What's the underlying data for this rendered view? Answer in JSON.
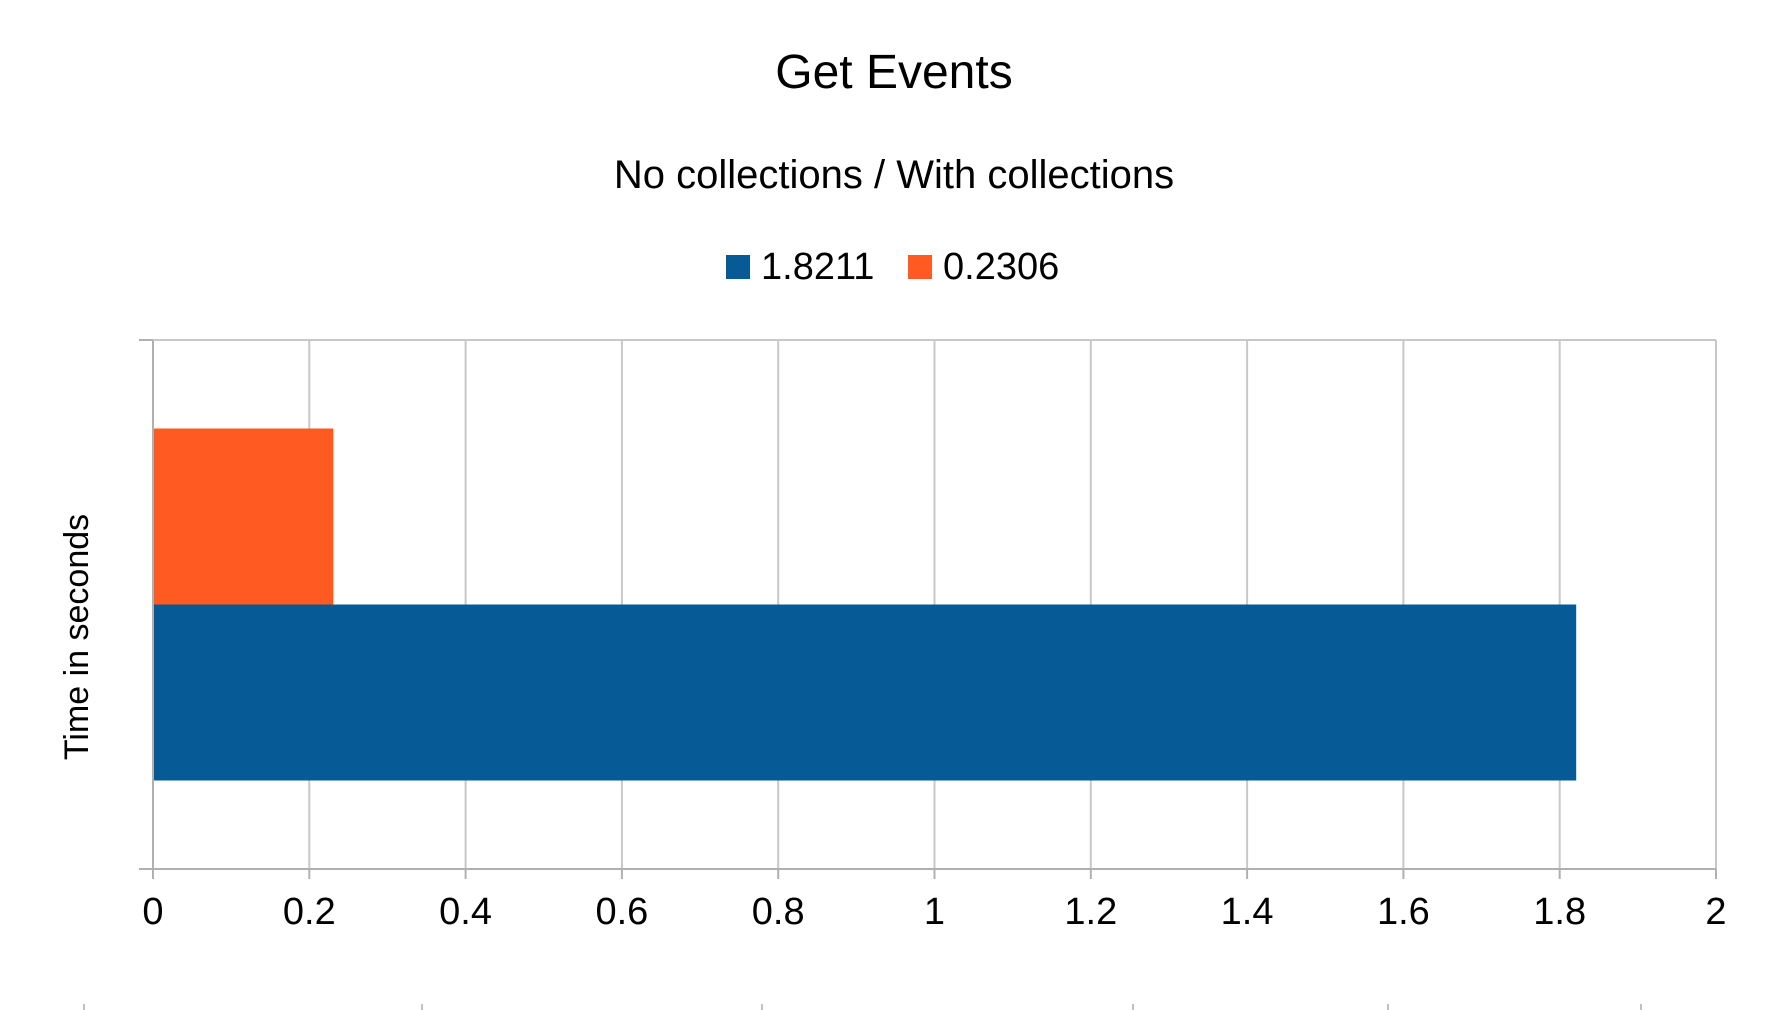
{
  "chart_data": {
    "type": "bar",
    "orientation": "horizontal",
    "title": "Get Events",
    "subtitle": "No collections / With collections",
    "xlabel": "",
    "ylabel": "Time in seconds",
    "xlim": [
      0,
      2
    ],
    "x_ticks": [
      "0",
      "0.2",
      "0.4",
      "0.6",
      "0.8",
      "1",
      "1.2",
      "1.4",
      "1.6",
      "1.8",
      "2"
    ],
    "grid": true,
    "legend_position": "top",
    "series": [
      {
        "name": "1.8211",
        "value": 1.8211,
        "color": "#065b96"
      },
      {
        "name": "0.2306",
        "value": 0.2306,
        "color": "#ff5a22"
      }
    ]
  }
}
